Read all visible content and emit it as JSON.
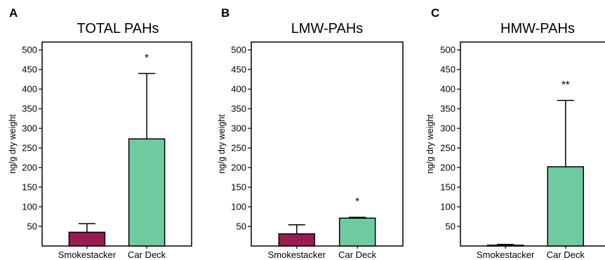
{
  "chart_data": [
    {
      "type": "bar",
      "panel_letter": "A",
      "title": "TOTAL PAHs",
      "ylabel": "ng/g dry weight",
      "xlabel": "",
      "categories": [
        "Smokestacker",
        "Car Deck"
      ],
      "values": [
        35,
        273
      ],
      "error_upper": [
        57,
        440
      ],
      "annotations": [
        "",
        "*"
      ],
      "ylim": [
        0,
        520
      ],
      "yticks": [
        50,
        100,
        150,
        200,
        250,
        300,
        350,
        400,
        450,
        500
      ],
      "colors": [
        "#9b1c52",
        "#6ecba0"
      ],
      "grid": false
    },
    {
      "type": "bar",
      "panel_letter": "B",
      "title": "LMW-PAHs",
      "ylabel": "ng/g dry weight",
      "xlabel": "",
      "categories": [
        "Smokestacker",
        "Car Deck"
      ],
      "values": [
        31,
        71
      ],
      "error_upper": [
        54,
        73
      ],
      "annotations": [
        "",
        "*"
      ],
      "ylim": [
        0,
        520
      ],
      "yticks": [
        50,
        100,
        150,
        200,
        250,
        300,
        350,
        400,
        450,
        500
      ],
      "colors": [
        "#9b1c52",
        "#6ecba0"
      ],
      "grid": false
    },
    {
      "type": "bar",
      "panel_letter": "C",
      "title": "HMW-PAHs",
      "ylabel": "ng/g dry weight",
      "xlabel": "",
      "categories": [
        "Smokestacker",
        "Car Deck"
      ],
      "values": [
        2,
        202
      ],
      "error_upper": [
        4,
        371
      ],
      "annotations": [
        "",
        "**"
      ],
      "ylim": [
        0,
        520
      ],
      "yticks": [
        50,
        100,
        150,
        200,
        250,
        300,
        350,
        400,
        450,
        500
      ],
      "colors": [
        "#9b1c52",
        "#6ecba0"
      ],
      "grid": false
    }
  ]
}
